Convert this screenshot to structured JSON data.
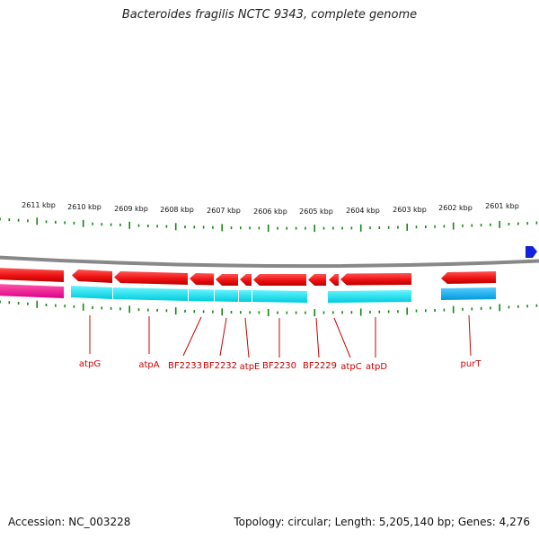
{
  "title": "Bacteroides fragilis NCTC 9343, complete genome",
  "footer": {
    "accession": "Accession: NC_003228",
    "summary": "Topology: circular; Length: 5,205,140 bp; Genes: 4,276"
  },
  "scale": {
    "labels": [
      "2611 kbp",
      "2610 kbp",
      "2609 kbp",
      "2608 kbp",
      "2607 kbp",
      "2606 kbp",
      "2605 kbp",
      "2604 kbp",
      "2603 kbp",
      "2602 kbp",
      "2601 kbp"
    ]
  },
  "genes": [
    "atpG",
    "atpA",
    "BF2233",
    "BF2232",
    "atpE",
    "BF2230",
    "BF2229",
    "atpC",
    "atpD",
    "purT"
  ],
  "colors": {
    "cds": "#ee1111",
    "protein": "#11ddee",
    "label": "#cc0000",
    "tick": "#118811",
    "backbone": "#888888",
    "marker": "#1122dd",
    "rna": "#ee2299"
  }
}
